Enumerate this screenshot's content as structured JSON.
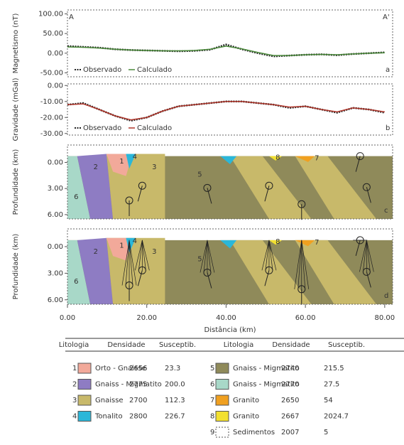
{
  "chart_data": [
    {
      "type": "line",
      "ylabel": "Magnetismo (nT)",
      "panel": "a",
      "x": [
        0,
        4,
        8,
        12,
        16,
        20,
        24,
        28,
        32,
        36,
        40,
        44,
        48,
        52,
        56,
        60,
        64,
        68,
        72,
        76,
        80
      ],
      "xlim": [
        0,
        82
      ],
      "ylim": [
        -60,
        110
      ],
      "yticks": [
        {
          "value": 100,
          "label": "100.00"
        },
        {
          "value": 50,
          "label": "50.00"
        },
        {
          "value": 0,
          "label": "0.00"
        },
        {
          "value": -50,
          "label": "-50.00"
        }
      ],
      "series": [
        {
          "name": "Observado",
          "color": "#222222",
          "dash": true,
          "values": [
            18,
            16,
            14,
            10,
            8,
            7,
            6,
            5,
            6,
            9,
            22,
            10,
            0,
            -8,
            -6,
            -4,
            -3,
            -5,
            -2,
            0,
            2
          ]
        },
        {
          "name": "Calculado",
          "color": "#4a8a3a",
          "values": [
            16,
            15,
            13,
            10,
            8,
            7,
            6,
            6,
            7,
            10,
            18,
            11,
            2,
            -6,
            -6,
            -4,
            -3,
            -4,
            -2,
            0,
            1
          ]
        }
      ]
    },
    {
      "type": "line",
      "ylabel": "Gravidade (mGal)",
      "panel": "b",
      "x": [
        0,
        4,
        8,
        12,
        16,
        20,
        24,
        28,
        32,
        36,
        40,
        44,
        48,
        52,
        56,
        60,
        64,
        68,
        72,
        76,
        80
      ],
      "xlim": [
        0,
        82
      ],
      "ylim": [
        -31,
        1
      ],
      "yticks": [
        {
          "value": 0,
          "label": "0.00"
        },
        {
          "value": -10,
          "label": "-10.00"
        },
        {
          "value": -20,
          "label": "-20.00"
        },
        {
          "value": -30,
          "label": "-30.00"
        }
      ],
      "series": [
        {
          "name": "Observado",
          "color": "#222222",
          "dash": true,
          "values": [
            -12,
            -11,
            -15,
            -19,
            -22,
            -20,
            -16,
            -13,
            -12,
            -11,
            -10,
            -10,
            -11,
            -12,
            -14,
            -13,
            -15,
            -17,
            -14,
            -15,
            -17
          ]
        },
        {
          "name": "Calculado",
          "color": "#b0352a",
          "values": [
            -12,
            -11.5,
            -15,
            -19,
            -21.5,
            -20,
            -16,
            -13,
            -12,
            -11,
            -10,
            -10,
            -11,
            -12,
            -13.5,
            -13,
            -15,
            -16.5,
            -14,
            -15,
            -16.5
          ]
        }
      ]
    }
  ],
  "profile": {
    "start": "A",
    "end": "A'"
  },
  "sections": [
    {
      "panel": "c",
      "ylabel": "Profundidade (km)",
      "ylim": [
        -2,
        6.5
      ],
      "yticks": [
        {
          "value": 0,
          "label": "0.00"
        },
        {
          "value": 3,
          "label": "3.00"
        },
        {
          "value": 6,
          "label": "6.00"
        }
      ],
      "unit_labels": [
        "6",
        "2",
        "1",
        "4",
        "3",
        "5",
        "8",
        "7"
      ]
    },
    {
      "panel": "d",
      "ylabel": "Profundidade (km)",
      "ylim": [
        -2,
        6.5
      ],
      "yticks": [
        {
          "value": 0,
          "label": "0.00"
        },
        {
          "value": 3,
          "label": "3.00"
        },
        {
          "value": 6,
          "label": "6.00"
        }
      ],
      "unit_labels": [
        "6",
        "2",
        "1",
        "4",
        "3",
        "5",
        "8",
        "7"
      ]
    }
  ],
  "x_axis": {
    "label": "Distância (km)",
    "xlim": [
      0,
      82
    ],
    "xticks": [
      {
        "value": 0,
        "label": "0.00"
      },
      {
        "value": 20,
        "label": "20.00"
      },
      {
        "value": 40,
        "label": "40.00"
      },
      {
        "value": 60,
        "label": "60.00"
      },
      {
        "value": 80,
        "label": "80.00"
      }
    ]
  },
  "table": {
    "header": [
      "Litologia",
      "Densidade",
      "Susceptib."
    ],
    "rows": [
      {
        "id": "1",
        "name": "Orto - Gnaisse",
        "density": "2656",
        "susc": "23.3",
        "color": "#f2a99a"
      },
      {
        "id": "2",
        "name": "Gnaiss - Migmatito",
        "density": "2775",
        "susc": "200.0",
        "color": "#8e7cc3"
      },
      {
        "id": "3",
        "name": "Gnaisse",
        "density": "2700",
        "susc": "112.3",
        "color": "#c8b96a"
      },
      {
        "id": "4",
        "name": "Tonalito",
        "density": "2800",
        "susc": "226.7",
        "color": "#2bb7d9"
      },
      {
        "id": "5",
        "name": "Gnaiss - Migmatito",
        "density": "2740",
        "susc": "215.5",
        "color": "#8f8a5a"
      },
      {
        "id": "6",
        "name": "Gnaiss - Migmatito",
        "density": "2770",
        "susc": "27.5",
        "color": "#a8d8c8"
      },
      {
        "id": "7",
        "name": "Granito",
        "density": "2650",
        "susc": "54",
        "color": "#f0a020"
      },
      {
        "id": "8",
        "name": "Granito",
        "density": "2667",
        "susc": "2024.7",
        "color": "#f2e030"
      },
      {
        "id": "9",
        "name": "Sedimentos",
        "density": "2007",
        "susc": "5",
        "color": "none"
      }
    ]
  }
}
